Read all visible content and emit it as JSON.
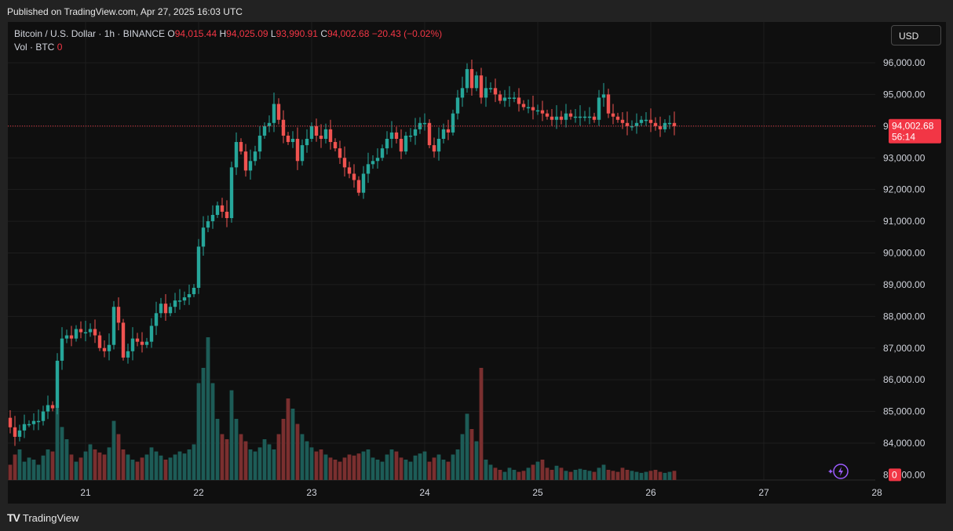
{
  "header": {
    "published": "Published on TradingView.com, Apr 27, 2025 16:03 UTC"
  },
  "legend": {
    "symbol": "Bitcoin / U.S. Dollar · 1h · BINANCE",
    "open_label": "O",
    "open": "94,015.44",
    "high_label": "H",
    "high": "94,025.09",
    "low_label": "L",
    "low": "93,990.91",
    "close_label": "C",
    "close": "94,002.68",
    "change": "−20.43 (−0.02%)",
    "vol_label": "Vol · BTC",
    "vol_value": "0"
  },
  "currency_button": "USD",
  "footer": {
    "brand": "TradingView",
    "logo": "TV"
  },
  "colors": {
    "up": "#26a69a",
    "down": "#ef5350",
    "vol_up": "#1d5c57",
    "vol_down": "#7a2f2f",
    "background": "#0f0f0f",
    "grid": "#1e1e1e",
    "price_line": "#f23645"
  },
  "chart_data": {
    "type": "candlestick",
    "title": "Bitcoin / U.S. Dollar · 1h · BINANCE",
    "x_ticks": [
      "21",
      "22",
      "23",
      "24",
      "25",
      "26",
      "27",
      "28"
    ],
    "y_ticks": [
      "84,000.00",
      "85,000.00",
      "86,000.00",
      "87,000.00",
      "88,000.00",
      "89,000.00",
      "90,000.00",
      "91,000.00",
      "92,000.00",
      "93,000.00",
      "94,000.00",
      "95,000.00",
      "96,000.00"
    ],
    "ylim": [
      83000,
      96500
    ],
    "last_price": 94002.68,
    "last_price_label": "94,002.68",
    "countdown": "56:14",
    "volume_label": "0",
    "volume_axis_label": "83,000.00",
    "start_hour_before_day21": 24,
    "path": [
      84800,
      84500,
      84200,
      84400,
      84600,
      84600,
      84700,
      84700,
      85000,
      85200,
      85100,
      86600,
      87300,
      87400,
      87300,
      87600,
      87500,
      87500,
      87600,
      87400,
      87000,
      86900,
      87100,
      88300,
      87800,
      86700,
      86900,
      87300,
      87200,
      87100,
      87200,
      87700,
      88100,
      88400,
      88100,
      88300,
      88500,
      88500,
      88600,
      88700,
      88900,
      90200,
      90800,
      91000,
      91200,
      91500,
      91300,
      91100,
      92700,
      93500,
      93200,
      92600,
      92900,
      93200,
      93700,
      94000,
      94100,
      94700,
      94200,
      93700,
      93500,
      93600,
      92900,
      93400,
      93600,
      94000,
      93700,
      93600,
      93900,
      93500,
      93300,
      93000,
      92700,
      92500,
      92300,
      91900,
      92500,
      92800,
      92900,
      93000,
      93300,
      93600,
      93800,
      93600,
      93200,
      93700,
      93700,
      93900,
      94100,
      94100,
      93400,
      93200,
      93600,
      93900,
      93800,
      94400,
      94900,
      95200,
      95800,
      95200,
      95600,
      94900,
      95200,
      95200,
      95000,
      94800,
      94900,
      94900,
      94900,
      94700,
      94600,
      94600,
      94500,
      94500,
      94400,
      94300,
      94200,
      94300,
      94200,
      94400,
      94300,
      94300,
      94300,
      94300,
      94300,
      94200,
      94900,
      95000,
      94400,
      94300,
      94200,
      94100,
      94000,
      94000,
      94100,
      94200,
      94200,
      94100,
      94000,
      93900,
      94100,
      94100,
      94000
    ],
    "volume": [
      20,
      15,
      25,
      30,
      18,
      22,
      20,
      15,
      24,
      30,
      28,
      70,
      52,
      40,
      25,
      18,
      22,
      28,
      35,
      30,
      27,
      25,
      32,
      58,
      45,
      30,
      25,
      20,
      18,
      22,
      25,
      32,
      28,
      24,
      20,
      22,
      25,
      28,
      26,
      30,
      35,
      95,
      110,
      140,
      95,
      60,
      45,
      40,
      88,
      60,
      45,
      38,
      30,
      28,
      32,
      40,
      35,
      30,
      45,
      60,
      80,
      70,
      55,
      45,
      38,
      32,
      28,
      30,
      25,
      22,
      20,
      18,
      22,
      25,
      24,
      26,
      28,
      30,
      22,
      20,
      18,
      25,
      30,
      28,
      22,
      20,
      18,
      24,
      26,
      28,
      18,
      22,
      25,
      20,
      18,
      25,
      30,
      45,
      65,
      50,
      38,
      110,
      20,
      15,
      12,
      10,
      8,
      12,
      10,
      8,
      9,
      12,
      15,
      18,
      20,
      12,
      10,
      14,
      12,
      9,
      8,
      10,
      11,
      10,
      9,
      8,
      12,
      15,
      10,
      9,
      8,
      12,
      10,
      9,
      8,
      7,
      8,
      9,
      10,
      8,
      7,
      8,
      9
    ]
  }
}
